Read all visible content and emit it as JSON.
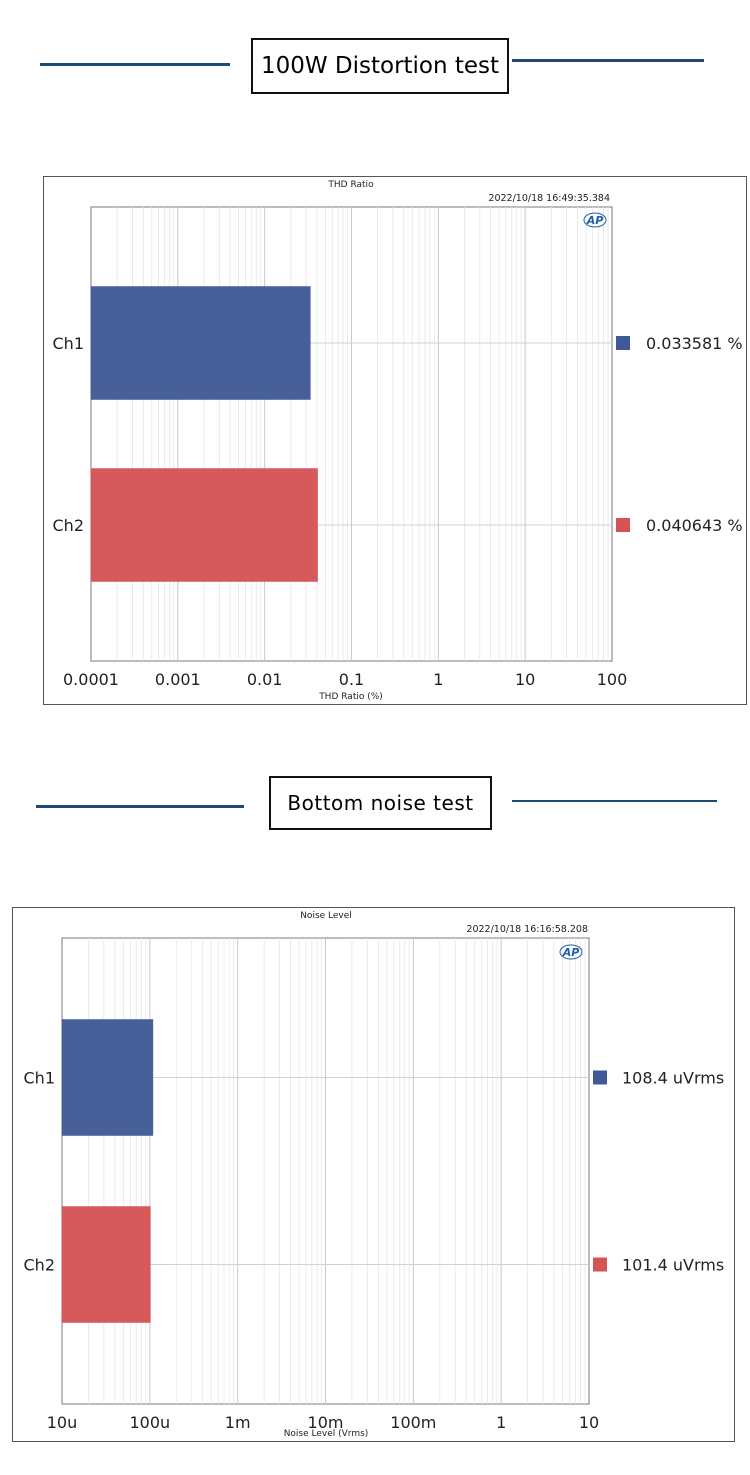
{
  "sections": [
    {
      "heading": "100W Distortion test"
    },
    {
      "heading": "Bottom noise test"
    }
  ],
  "chart_data": [
    {
      "type": "bar",
      "orientation": "horizontal",
      "title": "THD Ratio",
      "timestamp": "2022/10/18 16:49:35.384",
      "logo": "AP",
      "xlabel": "THD Ratio (%)",
      "xscale": "log",
      "xlim": [
        0.0001,
        100
      ],
      "xticks": [
        0.0001,
        0.001,
        0.01,
        0.1,
        1,
        10,
        100
      ],
      "xtick_labels": [
        "0.0001",
        "0.001",
        "0.01",
        "0.1",
        "1",
        "10",
        "100"
      ],
      "categories": [
        "Ch1",
        "Ch2"
      ],
      "values": [
        0.033581,
        0.040643
      ],
      "value_labels": [
        "0.033581  %",
        "0.040643  %"
      ],
      "colors": [
        "#3f5a96",
        "#d45354"
      ],
      "grid": true
    },
    {
      "type": "bar",
      "orientation": "horizontal",
      "title": "Noise Level",
      "timestamp": "2022/10/18 16:16:58.208",
      "logo": "AP",
      "xlabel": "Noise Level (Vrms)",
      "xscale": "log",
      "xlim": [
        1e-05,
        10
      ],
      "xticks": [
        1e-05,
        0.0001,
        0.001,
        0.01,
        0.1,
        1,
        10
      ],
      "xtick_labels": [
        "10u",
        "100u",
        "1m",
        "10m",
        "100m",
        "1",
        "10"
      ],
      "categories": [
        "Ch1",
        "Ch2"
      ],
      "values": [
        0.0001084,
        0.0001014
      ],
      "value_labels": [
        "108.4  uVrms",
        "101.4  uVrms"
      ],
      "colors": [
        "#3f5a96",
        "#d45354"
      ],
      "grid": true
    }
  ]
}
